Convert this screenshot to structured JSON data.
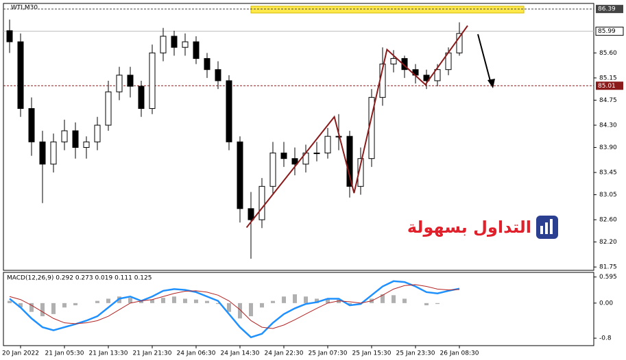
{
  "chart_data": [
    {
      "type": "candlestick",
      "title": "WTI,M30",
      "categories": [
        null,
        "20 Jan 2022",
        null,
        null,
        null,
        "21 Jan 05:30",
        null,
        null,
        null,
        "21 Jan 13:30",
        null,
        null,
        null,
        "21 Jan 21:30",
        null,
        null,
        null,
        "24 Jan 06:30",
        null,
        null,
        null,
        "24 Jan 14:30",
        null,
        null,
        null,
        "24 Jan 22:30",
        null,
        null,
        null,
        "25 Jan 07:30",
        null,
        null,
        null,
        "25 Jan 15:30",
        null,
        null,
        null,
        "25 Jan 23:30",
        null,
        null,
        null,
        "26 Jan 08:30"
      ],
      "open": [
        86.0,
        85.8,
        84.6,
        84.0,
        83.6,
        84.0,
        84.2,
        83.9,
        84.0,
        84.3,
        84.9,
        85.2,
        85.0,
        84.6,
        85.6,
        85.9,
        85.7,
        85.8,
        85.5,
        85.3,
        85.1,
        84.0,
        82.8,
        82.6,
        83.2,
        83.8,
        83.7,
        83.6,
        83.8,
        83.8,
        84.1,
        84.1,
        83.2,
        83.7,
        84.8,
        85.4,
        85.5,
        85.3,
        85.2,
        85.1,
        85.3,
        85.6
      ],
      "high": [
        86.2,
        85.95,
        84.8,
        84.2,
        84.15,
        84.4,
        84.35,
        84.1,
        84.45,
        85.1,
        85.35,
        85.35,
        85.1,
        85.75,
        86.05,
        86.0,
        85.95,
        85.9,
        85.6,
        85.45,
        85.2,
        84.1,
        83.1,
        83.35,
        84.0,
        84.0,
        83.9,
        83.95,
        84.0,
        84.25,
        84.5,
        84.2,
        83.9,
        84.95,
        85.7,
        85.65,
        85.55,
        85.4,
        85.3,
        85.4,
        85.7,
        86.15
      ],
      "low": [
        85.6,
        84.45,
        83.75,
        82.9,
        83.45,
        83.85,
        83.7,
        83.7,
        83.85,
        84.2,
        84.75,
        84.8,
        84.45,
        84.5,
        85.45,
        85.55,
        85.55,
        85.4,
        85.15,
        84.95,
        83.85,
        82.55,
        81.9,
        82.45,
        83.05,
        83.55,
        83.4,
        83.45,
        83.65,
        83.7,
        83.85,
        83.0,
        83.05,
        83.55,
        84.65,
        85.25,
        85.15,
        85.05,
        84.95,
        85.0,
        85.2,
        85.55
      ],
      "close": [
        85.8,
        84.6,
        84.0,
        83.6,
        84.0,
        84.2,
        83.9,
        84.0,
        84.3,
        84.9,
        85.2,
        85.0,
        84.6,
        85.6,
        85.9,
        85.7,
        85.8,
        85.5,
        85.3,
        85.1,
        84.0,
        82.8,
        82.6,
        83.2,
        83.8,
        83.7,
        83.6,
        83.8,
        83.8,
        84.1,
        84.1,
        83.2,
        83.7,
        84.8,
        85.4,
        85.5,
        85.3,
        85.2,
        85.1,
        85.3,
        85.6,
        85.95
      ],
      "ylim": [
        81.69,
        86.49
      ],
      "yticks": [
        {
          "value": 85.6,
          "label": "85.60"
        },
        85.15,
        84.75,
        {
          "value": 84.3,
          "label": "84.30"
        },
        {
          "value": 83.9,
          "label": "83.90"
        },
        83.45,
        83.05,
        {
          "value": 82.6,
          "label": "82.60"
        },
        {
          "value": 82.2,
          "label": "82.20"
        },
        81.75
      ],
      "levels": [
        86.39,
        85.01
      ],
      "current_price": 85.99,
      "trendline": {
        "x": [
          21.6,
          29.6,
          31.4,
          34.4,
          37.9,
          41.75
        ],
        "y": [
          82.46,
          84.45,
          83.08,
          85.66,
          85.03,
          86.09
        ],
        "color": "#8b1a1a"
      }
    },
    {
      "type": "macd",
      "title": "MACD(12,26,9) 0.292 0.273 0.019 0.111 0.125",
      "histogram": [
        0.05,
        -0.1,
        -0.2,
        -0.3,
        -0.25,
        -0.1,
        -0.05,
        0.0,
        0.05,
        0.1,
        0.15,
        0.12,
        0.05,
        0.08,
        0.12,
        0.15,
        0.1,
        0.08,
        0.05,
        -0.02,
        -0.2,
        -0.35,
        -0.3,
        -0.1,
        0.05,
        0.15,
        0.2,
        0.15,
        0.1,
        0.1,
        0.08,
        -0.05,
        0.0,
        0.1,
        0.2,
        0.18,
        0.1,
        0.0,
        -0.05,
        -0.02,
        0.0,
        0.0
      ],
      "series": [
        {
          "color": "#1e90ff",
          "values": [
            0.1,
            -0.1,
            -0.35,
            -0.55,
            -0.62,
            -0.55,
            -0.48,
            -0.4,
            -0.3,
            -0.1,
            0.1,
            0.15,
            0.05,
            0.15,
            0.28,
            0.32,
            0.3,
            0.25,
            0.15,
            0.05,
            -0.25,
            -0.55,
            -0.78,
            -0.7,
            -0.45,
            -0.25,
            -0.12,
            -0.02,
            0.02,
            0.1,
            0.1,
            -0.05,
            -0.02,
            0.18,
            0.38,
            0.5,
            0.48,
            0.38,
            0.25,
            0.22,
            0.28,
            0.33
          ]
        },
        {
          "color": "#b22222",
          "values": [
            0.15,
            0.08,
            -0.05,
            -0.2,
            -0.35,
            -0.45,
            -0.47,
            -0.45,
            -0.4,
            -0.3,
            -0.15,
            0.0,
            0.05,
            0.08,
            0.15,
            0.22,
            0.27,
            0.28,
            0.25,
            0.18,
            0.05,
            -0.15,
            -0.4,
            -0.55,
            -0.58,
            -0.5,
            -0.38,
            -0.25,
            -0.12,
            0.0,
            0.05,
            0.03,
            0.0,
            0.05,
            0.18,
            0.32,
            0.4,
            0.42,
            0.38,
            0.32,
            0.3,
            0.31
          ]
        }
      ],
      "ylim": [
        -0.97,
        0.7
      ],
      "yticks": [
        0.595,
        {
          "value": 0,
          "label": "0.00"
        },
        -0.8
      ]
    }
  ],
  "watermark": "التداول بسهولة"
}
